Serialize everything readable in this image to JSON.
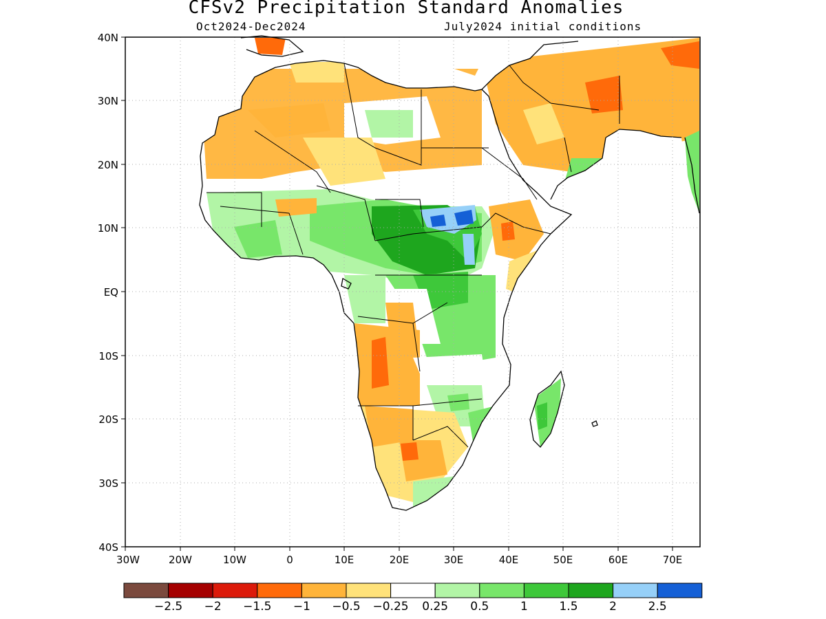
{
  "title": "CFSv2 Precipitation Standard Anomalies",
  "period": "Oct2024-Dec2024",
  "initial_conditions": "July2024 initial conditions",
  "axes": {
    "lat_ticks": [
      "40N",
      "30N",
      "20N",
      "10N",
      "EQ",
      "10S",
      "20S",
      "30S",
      "40S"
    ],
    "lon_ticks": [
      "30W",
      "20W",
      "10W",
      "0",
      "10E",
      "20E",
      "30E",
      "40E",
      "50E",
      "60E",
      "70E"
    ],
    "lat_range": [
      -40,
      40
    ],
    "lon_range": [
      -30,
      75
    ]
  },
  "colorbar": {
    "colors": [
      "#7b4a3e",
      "#a50000",
      "#dc1a0a",
      "#ff6a0a",
      "#ffb43a",
      "#ffe27a",
      "#ffffff",
      "#b2f5a6",
      "#78e66a",
      "#3ec83a",
      "#1ea61e",
      "#96d0f8",
      "#1560d6"
    ],
    "labels": [
      "-2.5",
      "-2",
      "-1.5",
      "-1",
      "-0.5",
      "-0.25",
      "0.25",
      "0.5",
      "1",
      "1.5",
      "2",
      "2.5"
    ]
  },
  "colors": {
    "ocean": "#ffffff",
    "coast": "#000000",
    "grid": "#aaaaaa"
  },
  "chart_data": {
    "type": "heatmap",
    "title": "CFSv2 Precipitation Standard Anomalies",
    "subtitle": "Oct2024-Dec2024",
    "annotation": "July2024 initial conditions",
    "projection": "lat-lon",
    "grid": true,
    "legend_placement": "bottom",
    "anomaly_regions": [
      {
        "region": "Sahara / North Africa",
        "value": -0.5
      },
      {
        "region": "Egypt / Arabian Peninsula",
        "value": -0.5
      },
      {
        "region": "Iran",
        "value": -1
      },
      {
        "region": "Sudan / South Sudan",
        "value": 2.5
      },
      {
        "region": "Central African Republic",
        "value": 1.5
      },
      {
        "region": "Ethiopian Highlands",
        "value": -1
      },
      {
        "region": "Somalia / Kenya coast",
        "value": -0.5
      },
      {
        "region": "Angola",
        "value": -1
      },
      {
        "region": "Zambia / Zimbabwe",
        "value": 0.5
      },
      {
        "region": "Namibia / Botswana",
        "value": -0.5
      },
      {
        "region": "South Africa",
        "value": -0.5
      },
      {
        "region": "Madagascar",
        "value": 1
      },
      {
        "region": "Guinea Coast / Nigeria",
        "value": 1
      }
    ]
  }
}
